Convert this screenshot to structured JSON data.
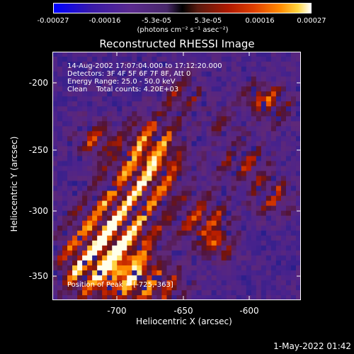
{
  "colorbar": {
    "ticks": [
      "-0.00027",
      "-0.00016",
      "-5.3e-05",
      "5.3e-05",
      "0.00016",
      "0.00027"
    ],
    "unit": "(photons cm⁻² s⁻¹ asec⁻²)"
  },
  "plot": {
    "title": "Reconstructed RHESSI Image",
    "info_lines": [
      "14-Aug-2002 17:07:04.000 to 17:12:20.000",
      "Detectors: 3F 4F 5F 6F 7F 8F, Att 0",
      "Energy Range: 25.0 - 50.0 keV",
      "Clean    Total counts: 4.20E+03"
    ],
    "peak_text": "Position of Peak = [-725,-363]",
    "xlabel": "Heliocentric X (arcsec)",
    "ylabel": "Heliocentric Y (arcsec)",
    "xticks": [
      "-700",
      "-650",
      "-600"
    ],
    "yticks": [
      "-200",
      "-250",
      "-300",
      "-350"
    ]
  },
  "footer": {
    "timestamp": "1-May-2022 01:42"
  },
  "colors": {
    "background": "#000000",
    "foreground": "#ffffff"
  }
}
